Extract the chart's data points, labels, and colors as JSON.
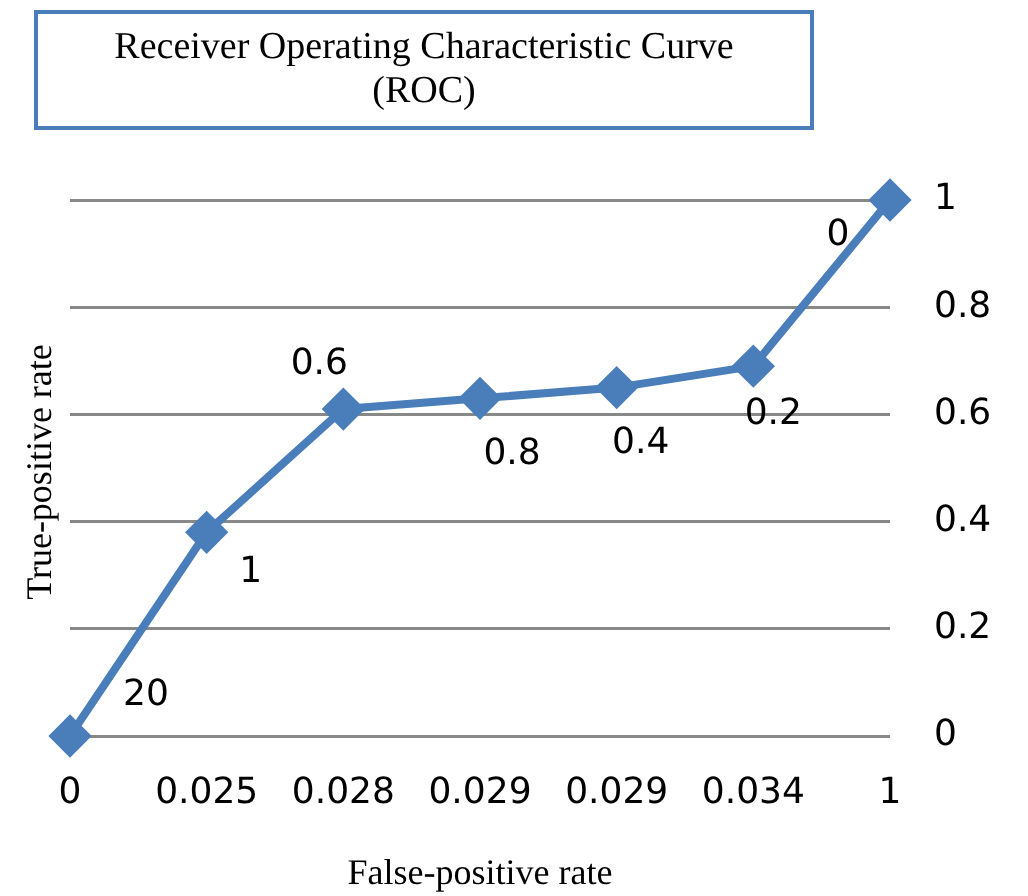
{
  "chart_data": {
    "type": "line",
    "title": "Receiver Operating Characteristic Curve (ROC)",
    "xlabel": "False-positive rate",
    "ylabel": "True-positive rate",
    "categories": [
      "0",
      "0.025",
      "0.028",
      "0.029",
      "0.029",
      "0.034",
      "1"
    ],
    "series": [
      {
        "color": "#4a7ebb",
        "values": [
          0,
          0.38,
          0.61,
          0.63,
          0.65,
          0.69,
          1
        ]
      }
    ],
    "annotations": [
      "20",
      "1",
      "0.6",
      "0.8",
      "0.4",
      "0.2",
      "0"
    ],
    "ylim": [
      0,
      1
    ],
    "yticks": [
      0,
      0.2,
      0.4,
      0.6,
      0.8,
      1
    ],
    "grid": "y",
    "legend": false,
    "marker": "diamond",
    "line_style": "solid"
  }
}
